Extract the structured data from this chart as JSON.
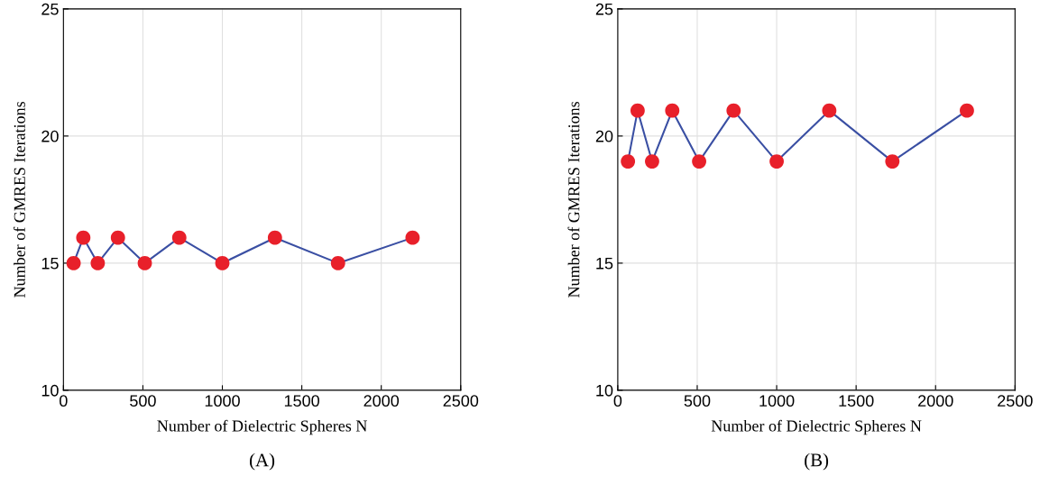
{
  "chart_data": [
    {
      "type": "line",
      "xlabel": "Number of Dielectric Spheres N",
      "ylabel": "Number of GMRES Iterations",
      "annotations": [
        "(A)"
      ],
      "x": [
        64,
        125,
        216,
        343,
        512,
        729,
        1000,
        1331,
        1728,
        2197
      ],
      "series": [
        {
          "color": "#3a4fa3",
          "colors": [
            "#e8202a",
            "#e8202a",
            "#e8202a",
            "#e8202a",
            "#e8202a",
            "#e8202a",
            "#e8202a",
            "#e8202a",
            "#e8202a",
            "#e8202a"
          ],
          "values": [
            15,
            16,
            15,
            16,
            15,
            16,
            15,
            16,
            15,
            16
          ]
        }
      ],
      "xlim": [
        0,
        2500
      ],
      "xticks": [
        0,
        500,
        1000,
        1500,
        2000,
        2500
      ],
      "ylim": [
        10,
        25
      ],
      "yticks": [
        10,
        15,
        20,
        25
      ],
      "grid": true,
      "marker": "circle",
      "line_style": "solid"
    },
    {
      "type": "line",
      "xlabel": "Number of Dielectric Spheres N",
      "ylabel": "Number of GMRES Iterations",
      "annotations": [
        "(B)"
      ],
      "x": [
        64,
        125,
        216,
        343,
        512,
        729,
        1000,
        1331,
        1728,
        2197
      ],
      "series": [
        {
          "color": "#3a4fa3",
          "colors": [
            "#e8202a",
            "#e8202a",
            "#e8202a",
            "#e8202a",
            "#e8202a",
            "#e8202a",
            "#e8202a",
            "#e8202a",
            "#e8202a",
            "#e8202a"
          ],
          "values": [
            19,
            21,
            19,
            21,
            19,
            21,
            19,
            21,
            19,
            21
          ]
        }
      ],
      "xlim": [
        0,
        2500
      ],
      "xticks": [
        0,
        500,
        1000,
        1500,
        2000,
        2500
      ],
      "ylim": [
        10,
        25
      ],
      "yticks": [
        10,
        15,
        20,
        25
      ],
      "grid": true,
      "marker": "circle",
      "line_style": "solid"
    }
  ]
}
